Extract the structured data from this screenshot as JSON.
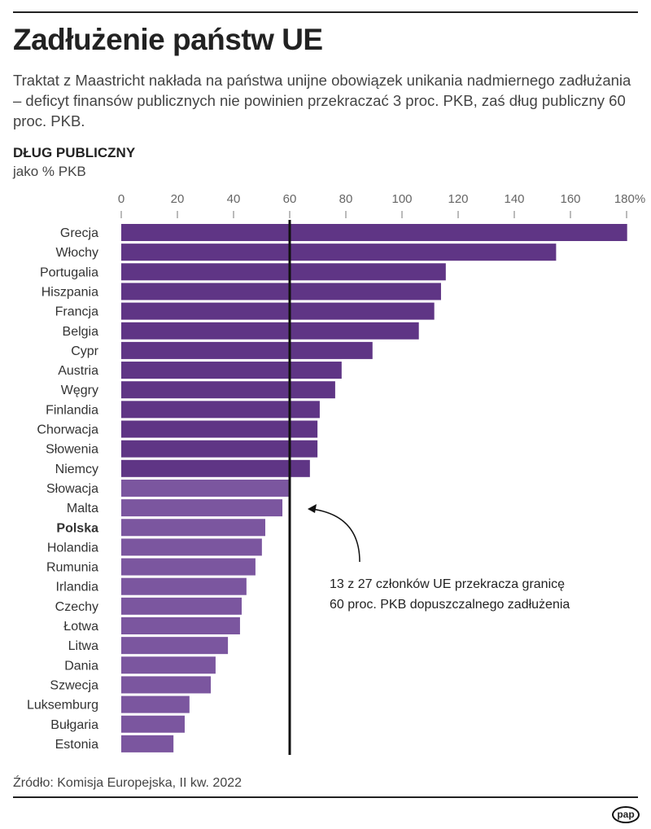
{
  "title": "Zadłużenie państw UE",
  "subtitle": "Traktat z Maastricht nakłada na państwa unijne obowiązek unikania nadmiernego zadłużania – deficyt finansów publicznych nie powinien przekraczać 3 proc. PKB, zaś dług publiczny 60 proc. PKB.",
  "source": "Źródło: Komisja Europejska, II kw. 2022",
  "logo": "pap",
  "chart_data": {
    "type": "bar",
    "orientation": "horizontal",
    "title": "DŁUG PUBLICZNY",
    "unit_label": "jako % PKB",
    "xlim": [
      0,
      180
    ],
    "ticks": [
      "0",
      "20",
      "40",
      "60",
      "80",
      "100",
      "120",
      "140",
      "160",
      "180%"
    ],
    "tick_values": [
      0,
      20,
      40,
      60,
      80,
      100,
      120,
      140,
      160,
      180
    ],
    "reference_line": 60,
    "annotation": [
      "13 z 27 członków UE przekracza granicę",
      "60 proc. PKB dopuszczalnego zadłużenia"
    ],
    "highlight": "Polska",
    "colors": {
      "above": "#5f3585",
      "below": "#7b569f",
      "line": "#111111"
    },
    "categories": [
      "Grecja",
      "Włochy",
      "Portugalia",
      "Hiszpania",
      "Francja",
      "Belgia",
      "Cypr",
      "Austria",
      "Węgry",
      "Finlandia",
      "Chorwacja",
      "Słowenia",
      "Niemcy",
      "Słowacja",
      "Malta",
      "Polska",
      "Holandia",
      "Rumunia",
      "Irlandia",
      "Czechy",
      "Łotwa",
      "Litwa",
      "Dania",
      "Szwecja",
      "Luksemburg",
      "Bułgaria",
      "Estonia"
    ],
    "values": [
      180.2,
      154.9,
      115.6,
      113.9,
      111.5,
      106.0,
      89.5,
      78.5,
      76.2,
      70.7,
      69.9,
      69.9,
      67.2,
      59.7,
      57.4,
      51.3,
      50.1,
      47.8,
      44.6,
      42.9,
      42.3,
      38.0,
      33.6,
      31.9,
      24.3,
      22.6,
      18.6
    ]
  }
}
